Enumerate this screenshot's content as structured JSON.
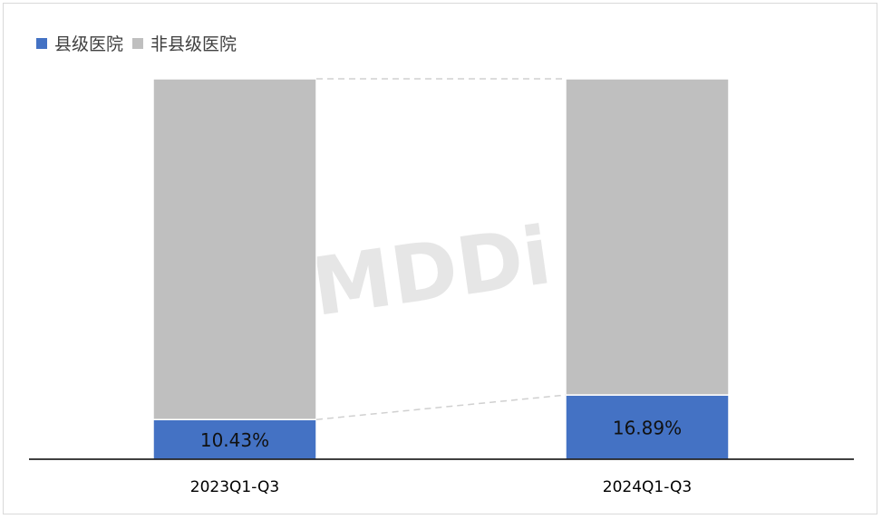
{
  "chart_data": {
    "type": "bar",
    "stacked": true,
    "percent_stacked": true,
    "categories": [
      "2023Q1-Q3",
      "2024Q1-Q3"
    ],
    "series": [
      {
        "name": "县级医院",
        "values": [
          10.43,
          16.89
        ],
        "color": "#4472c4"
      },
      {
        "name": "非县级医院",
        "values": [
          89.57,
          83.11
        ],
        "color": "#bfbfbf"
      }
    ],
    "data_labels": [
      "10.43%",
      "16.89%"
    ],
    "ylim": [
      0,
      100
    ],
    "legend_position": "top-left",
    "grid": false,
    "series_lines": true,
    "watermark": "MDDi"
  }
}
